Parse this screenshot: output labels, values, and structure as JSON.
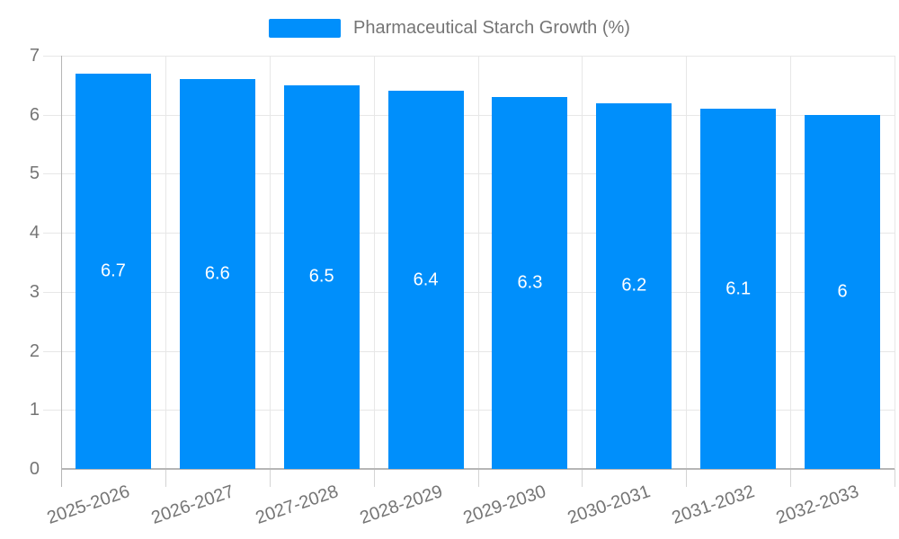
{
  "chart_data": {
    "type": "bar",
    "title": "Pharmaceutical Starch Growth (%)",
    "categories": [
      "2025-2026",
      "2026-2027",
      "2027-2028",
      "2028-2029",
      "2029-2030",
      "2030-2031",
      "2031-2032",
      "2032-2033"
    ],
    "series": [
      {
        "name": "Pharmaceutical Starch Growth (%)",
        "values": [
          6.7,
          6.6,
          6.5,
          6.4,
          6.3,
          6.2,
          6.1,
          6
        ]
      }
    ],
    "xlabel": "",
    "ylabel": "",
    "ylim": [
      0,
      7
    ],
    "y_ticks": [
      0,
      1,
      2,
      3,
      4,
      5,
      6,
      7
    ],
    "grid": true,
    "legend_position": "top",
    "data_labels_shown": true,
    "colors": {
      "bar": "#008FFB",
      "grid": "#e7e7e7",
      "axis": "#b6b6b6",
      "tick": "#d4d4d4",
      "axis_label": "#757575",
      "data_label": "#ffffff",
      "background": "#ffffff"
    }
  }
}
